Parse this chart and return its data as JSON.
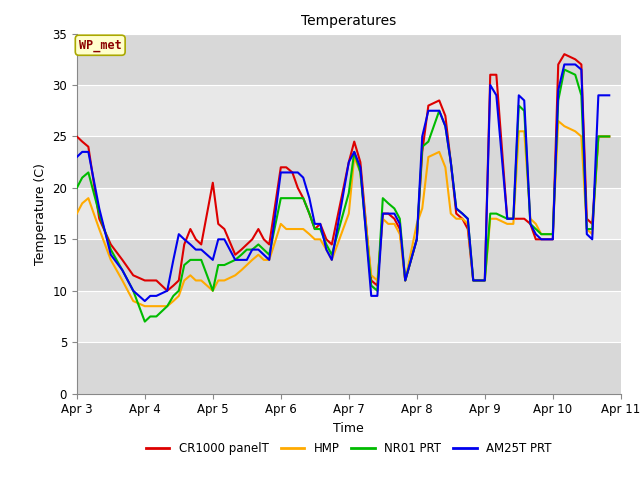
{
  "title": "Temperatures",
  "xlabel": "Time",
  "ylabel": "Temperature (C)",
  "annotation": "WP_met",
  "ylim": [
    0,
    35
  ],
  "xlim_days": [
    3.0,
    11.0
  ],
  "series": {
    "CR1000 panelT": {
      "color": "#dd0000",
      "x": [
        3.0,
        3.08,
        3.17,
        3.33,
        3.5,
        3.67,
        3.83,
        4.0,
        4.08,
        4.17,
        4.33,
        4.42,
        4.5,
        4.58,
        4.67,
        4.75,
        4.83,
        5.0,
        5.08,
        5.17,
        5.33,
        5.42,
        5.5,
        5.58,
        5.67,
        5.75,
        5.83,
        6.0,
        6.08,
        6.17,
        6.25,
        6.33,
        6.42,
        6.5,
        6.58,
        6.67,
        6.75,
        7.0,
        7.08,
        7.17,
        7.33,
        7.42,
        7.5,
        7.58,
        7.67,
        7.75,
        7.83,
        8.0,
        8.08,
        8.17,
        8.33,
        8.42,
        8.5,
        8.58,
        8.67,
        8.75,
        8.83,
        9.0,
        9.08,
        9.17,
        9.33,
        9.42,
        9.5,
        9.58,
        9.67,
        9.75,
        9.83,
        10.0,
        10.08,
        10.17,
        10.33,
        10.42,
        10.5,
        10.58,
        10.67,
        10.75,
        10.83
      ],
      "y": [
        25.0,
        24.5,
        24.0,
        17.0,
        14.5,
        13.0,
        11.5,
        11.0,
        11.0,
        11.0,
        10.0,
        10.5,
        11.0,
        14.5,
        16.0,
        15.0,
        14.5,
        20.5,
        16.5,
        16.0,
        13.5,
        14.0,
        14.5,
        15.0,
        16.0,
        15.0,
        14.5,
        22.0,
        22.0,
        21.5,
        20.0,
        19.0,
        17.5,
        16.0,
        16.5,
        15.0,
        14.5,
        22.5,
        24.5,
        22.5,
        11.0,
        10.5,
        17.5,
        17.5,
        17.0,
        16.0,
        11.0,
        15.0,
        23.5,
        28.0,
        28.5,
        27.0,
        22.5,
        17.5,
        17.0,
        16.0,
        11.0,
        11.0,
        31.0,
        31.0,
        17.0,
        17.0,
        17.0,
        17.0,
        16.5,
        15.0,
        15.0,
        15.0,
        32.0,
        33.0,
        32.5,
        32.0,
        17.0,
        16.5,
        25.0,
        25.0,
        25.0
      ]
    },
    "HMP": {
      "color": "#ffaa00",
      "x": [
        3.0,
        3.08,
        3.17,
        3.33,
        3.5,
        3.67,
        3.83,
        4.0,
        4.08,
        4.17,
        4.33,
        4.42,
        4.5,
        4.58,
        4.67,
        4.75,
        4.83,
        5.0,
        5.08,
        5.17,
        5.33,
        5.42,
        5.5,
        5.58,
        5.67,
        5.75,
        5.83,
        6.0,
        6.08,
        6.17,
        6.25,
        6.33,
        6.42,
        6.5,
        6.58,
        6.67,
        6.75,
        7.0,
        7.08,
        7.17,
        7.33,
        7.42,
        7.5,
        7.58,
        7.67,
        7.75,
        7.83,
        8.0,
        8.08,
        8.17,
        8.33,
        8.42,
        8.5,
        8.58,
        8.67,
        8.75,
        8.83,
        9.0,
        9.08,
        9.17,
        9.33,
        9.42,
        9.5,
        9.58,
        9.67,
        9.75,
        9.83,
        10.0,
        10.08,
        10.17,
        10.33,
        10.42,
        10.5,
        10.58,
        10.67,
        10.75,
        10.83
      ],
      "y": [
        17.5,
        18.5,
        19.0,
        16.0,
        13.0,
        11.0,
        9.0,
        8.5,
        8.5,
        8.5,
        8.5,
        9.0,
        9.5,
        11.0,
        11.5,
        11.0,
        11.0,
        10.0,
        11.0,
        11.0,
        11.5,
        12.0,
        12.5,
        13.0,
        13.5,
        13.0,
        13.0,
        16.5,
        16.0,
        16.0,
        16.0,
        16.0,
        15.5,
        15.0,
        15.0,
        14.0,
        13.0,
        17.5,
        23.0,
        21.5,
        11.5,
        11.0,
        17.0,
        16.5,
        16.5,
        15.5,
        11.0,
        16.5,
        18.0,
        23.0,
        23.5,
        22.0,
        17.5,
        17.0,
        17.0,
        16.5,
        11.0,
        11.0,
        17.0,
        17.0,
        16.5,
        16.5,
        25.5,
        25.5,
        17.0,
        16.5,
        15.5,
        15.5,
        26.5,
        26.0,
        25.5,
        25.0,
        16.0,
        15.5,
        25.0,
        25.0,
        25.0
      ]
    },
    "NR01 PRT": {
      "color": "#00bb00",
      "x": [
        3.0,
        3.08,
        3.17,
        3.33,
        3.5,
        3.67,
        3.83,
        4.0,
        4.08,
        4.17,
        4.33,
        4.42,
        4.5,
        4.58,
        4.67,
        4.75,
        4.83,
        5.0,
        5.08,
        5.17,
        5.33,
        5.42,
        5.5,
        5.58,
        5.67,
        5.75,
        5.83,
        6.0,
        6.08,
        6.17,
        6.25,
        6.33,
        6.42,
        6.5,
        6.58,
        6.67,
        6.75,
        7.0,
        7.08,
        7.17,
        7.33,
        7.42,
        7.5,
        7.58,
        7.67,
        7.75,
        7.83,
        8.0,
        8.08,
        8.17,
        8.33,
        8.42,
        8.5,
        8.58,
        8.67,
        8.75,
        8.83,
        9.0,
        9.08,
        9.17,
        9.33,
        9.42,
        9.5,
        9.58,
        9.67,
        9.75,
        9.83,
        10.0,
        10.08,
        10.17,
        10.33,
        10.42,
        10.5,
        10.58,
        10.67,
        10.75,
        10.83
      ],
      "y": [
        20.0,
        21.0,
        21.5,
        17.5,
        14.0,
        12.0,
        10.0,
        7.0,
        7.5,
        7.5,
        8.5,
        9.5,
        10.0,
        12.5,
        13.0,
        13.0,
        13.0,
        10.0,
        12.5,
        12.5,
        13.0,
        13.5,
        14.0,
        14.0,
        14.5,
        14.0,
        13.5,
        19.0,
        19.0,
        19.0,
        19.0,
        19.0,
        17.5,
        16.0,
        16.0,
        14.5,
        13.5,
        19.5,
        23.5,
        21.5,
        10.5,
        10.0,
        19.0,
        18.5,
        18.0,
        17.0,
        11.0,
        15.0,
        24.0,
        24.5,
        27.5,
        26.0,
        22.5,
        18.0,
        17.5,
        17.0,
        11.0,
        11.0,
        17.5,
        17.5,
        17.0,
        17.0,
        28.0,
        27.5,
        16.5,
        16.0,
        15.5,
        15.5,
        28.5,
        31.5,
        31.0,
        29.0,
        16.0,
        16.0,
        25.0,
        25.0,
        25.0
      ]
    },
    "AM25T PRT": {
      "color": "#0000ee",
      "x": [
        3.0,
        3.08,
        3.17,
        3.33,
        3.5,
        3.67,
        3.83,
        4.0,
        4.08,
        4.17,
        4.33,
        4.42,
        4.5,
        4.58,
        4.67,
        4.75,
        4.83,
        5.0,
        5.08,
        5.17,
        5.33,
        5.42,
        5.5,
        5.58,
        5.67,
        5.75,
        5.83,
        6.0,
        6.08,
        6.17,
        6.25,
        6.33,
        6.42,
        6.5,
        6.58,
        6.67,
        6.75,
        7.0,
        7.08,
        7.17,
        7.33,
        7.42,
        7.5,
        7.58,
        7.67,
        7.75,
        7.83,
        8.0,
        8.08,
        8.17,
        8.33,
        8.42,
        8.5,
        8.58,
        8.67,
        8.75,
        8.83,
        9.0,
        9.08,
        9.17,
        9.33,
        9.42,
        9.5,
        9.58,
        9.67,
        9.75,
        9.83,
        10.0,
        10.08,
        10.17,
        10.33,
        10.42,
        10.5,
        10.58,
        10.67,
        10.75,
        10.83
      ],
      "y": [
        23.0,
        23.5,
        23.5,
        18.0,
        13.5,
        12.0,
        10.0,
        9.0,
        9.5,
        9.5,
        10.0,
        13.0,
        15.5,
        15.0,
        14.5,
        14.0,
        14.0,
        13.0,
        15.0,
        15.0,
        13.0,
        13.0,
        13.0,
        14.0,
        14.0,
        13.5,
        13.0,
        21.5,
        21.5,
        21.5,
        21.5,
        21.0,
        19.0,
        16.5,
        16.5,
        14.0,
        13.0,
        22.5,
        23.5,
        22.0,
        9.5,
        9.5,
        17.5,
        17.5,
        17.5,
        16.5,
        11.0,
        15.0,
        25.0,
        27.5,
        27.5,
        26.0,
        22.5,
        18.0,
        17.5,
        17.0,
        11.0,
        11.0,
        30.0,
        29.0,
        17.0,
        17.0,
        29.0,
        28.5,
        16.5,
        15.5,
        15.0,
        15.0,
        29.5,
        32.0,
        32.0,
        31.5,
        15.5,
        15.0,
        29.0,
        29.0,
        29.0
      ]
    }
  },
  "xticks_pos": [
    3,
    4,
    5,
    6,
    7,
    8,
    9,
    10,
    11
  ],
  "xticks_labels": [
    "Apr 3",
    "Apr 4",
    "Apr 5",
    "Apr 6",
    "Apr 7",
    "Apr 8",
    "Apr 9",
    "Apr 10",
    "Apr 11"
  ],
  "yticks": [
    0,
    5,
    10,
    15,
    20,
    25,
    30,
    35
  ],
  "legend_labels": [
    "CR1000 panelT",
    "HMP",
    "NR01 PRT",
    "AM25T PRT"
  ],
  "legend_colors": [
    "#dd0000",
    "#ffaa00",
    "#00bb00",
    "#0000ee"
  ],
  "band_colors": [
    "#d8d8d8",
    "#e8e8e8"
  ],
  "band_edges": [
    0,
    5,
    10,
    15,
    20,
    25,
    30,
    35
  ]
}
